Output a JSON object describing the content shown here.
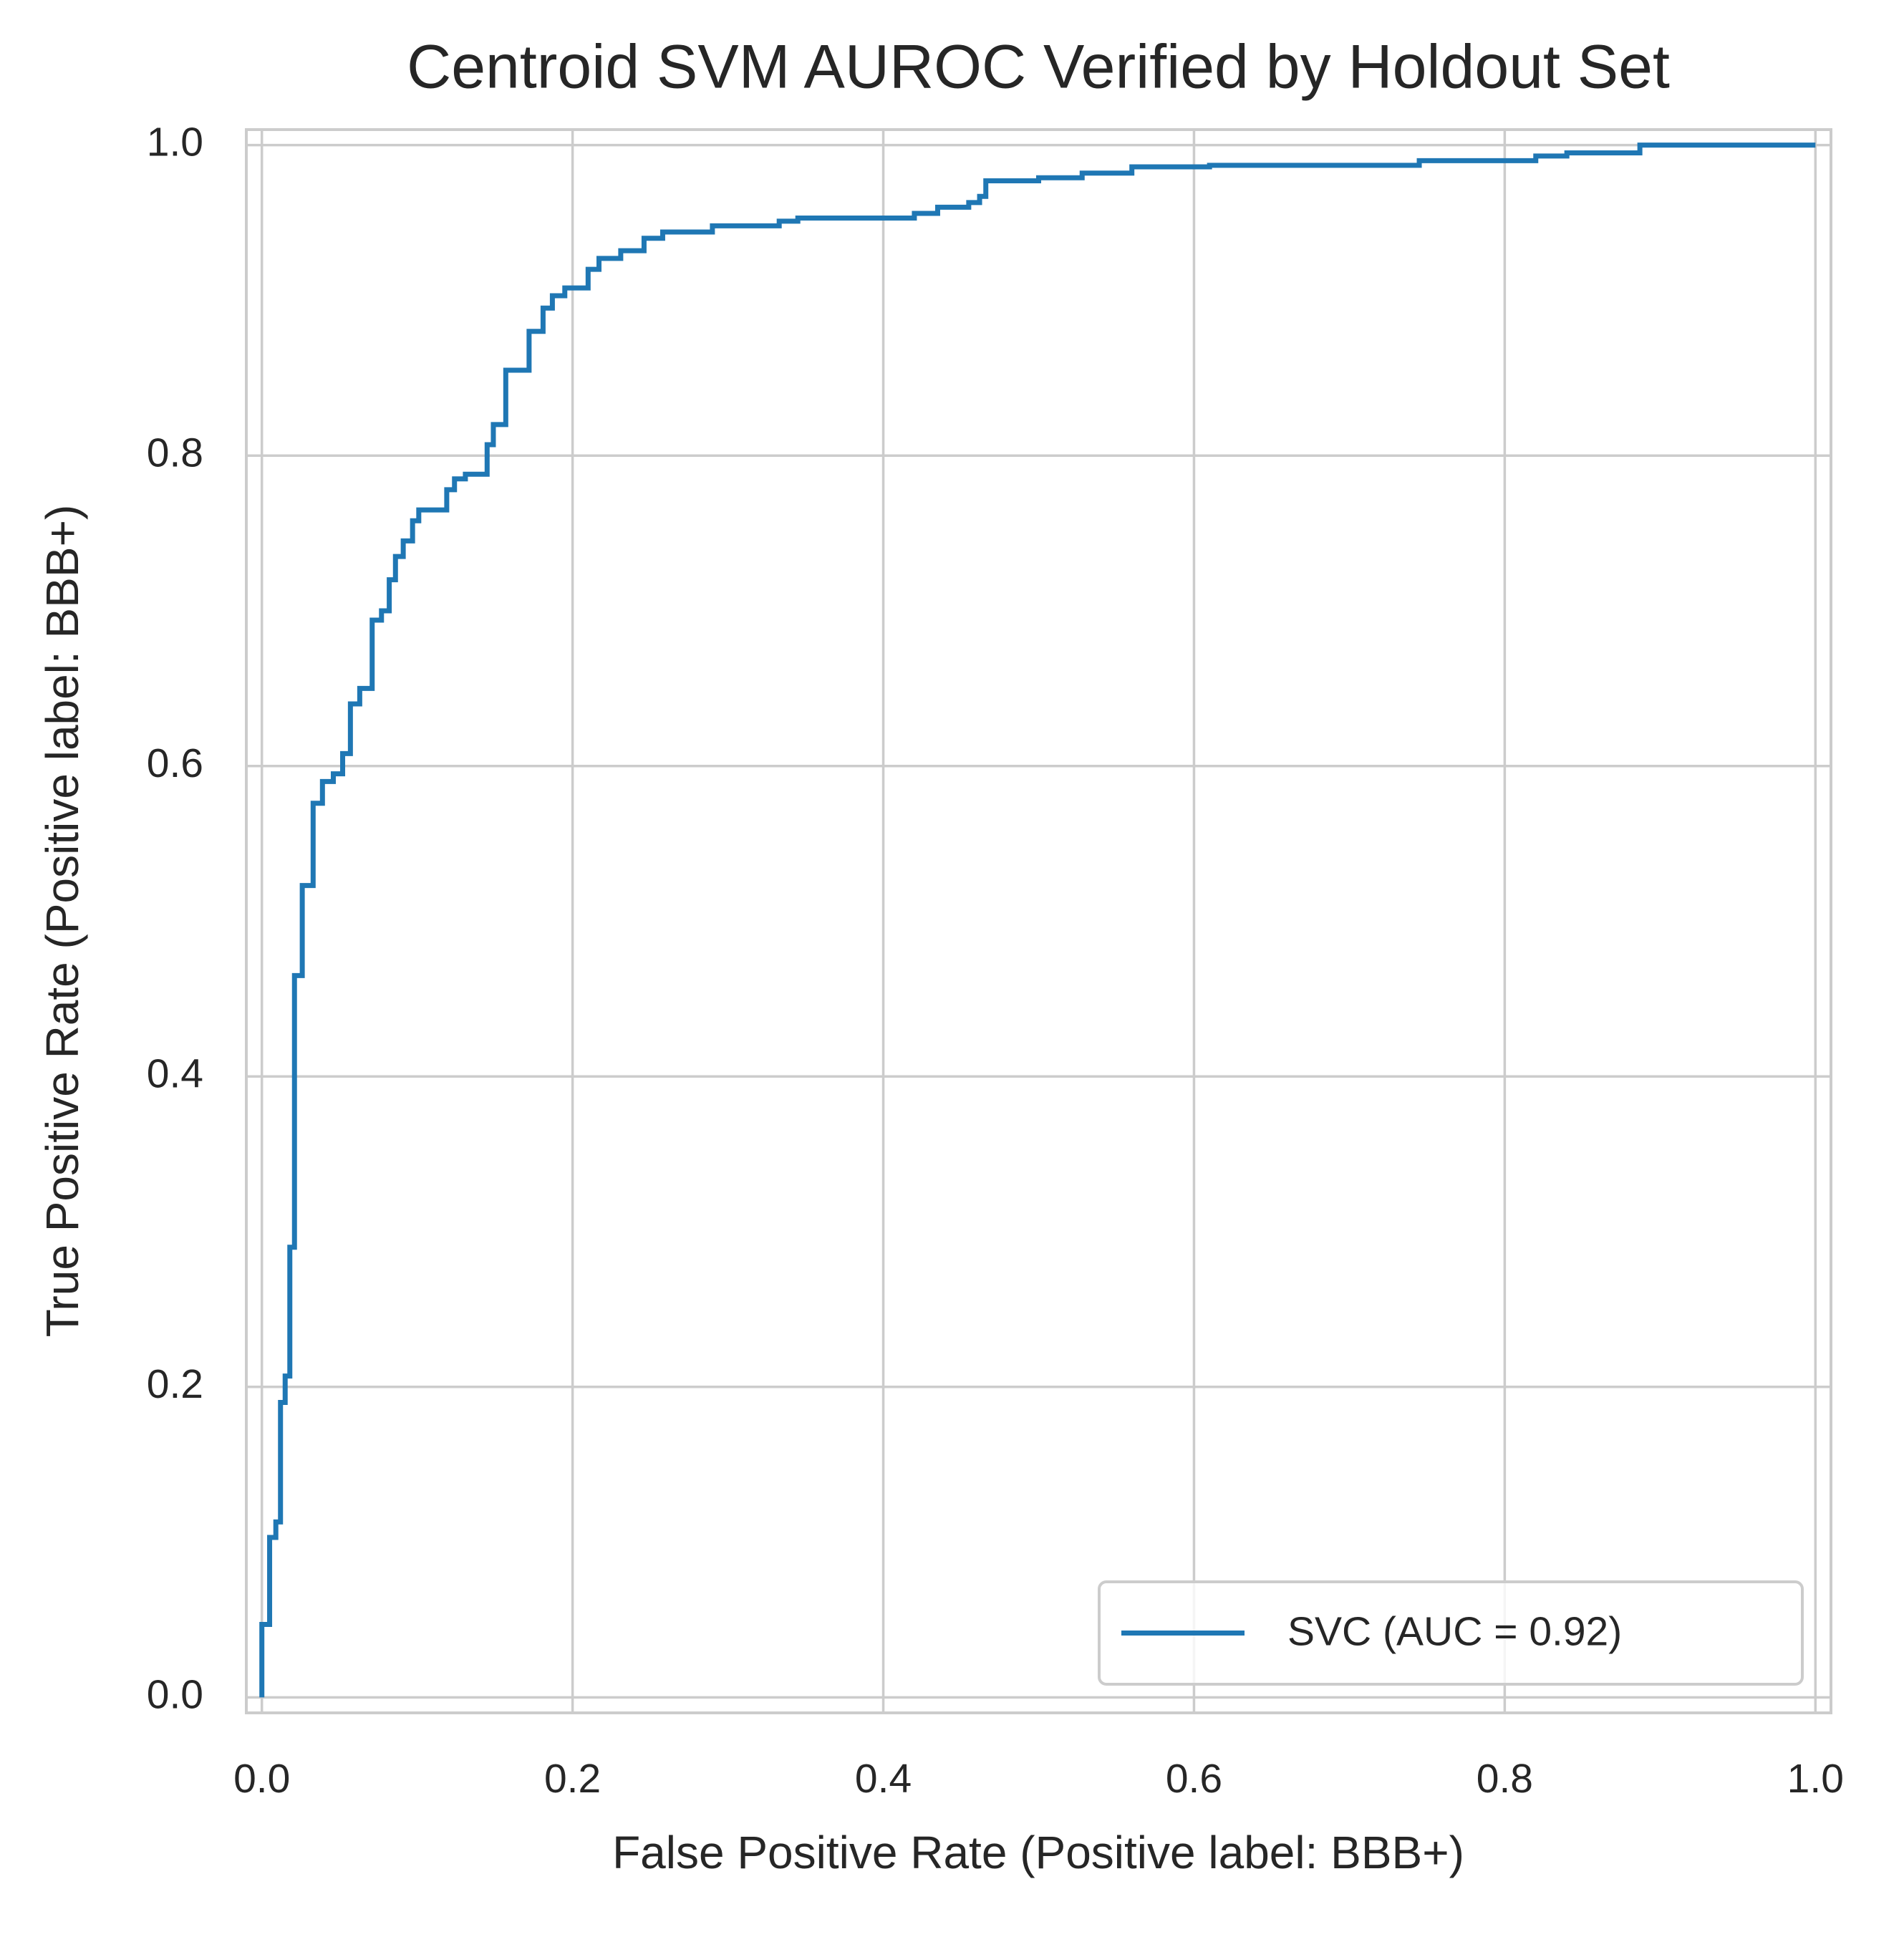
{
  "chart_data": {
    "type": "line",
    "title": "Centroid SVM AUROC Verified by Holdout Set",
    "xlabel": "False Positive Rate (Positive label: BBB+)",
    "ylabel": "True Positive Rate (Positive label: BBB+)",
    "xlim": [
      -0.01,
      1.01
    ],
    "ylim": [
      -0.01,
      1.01
    ],
    "xticks": [
      {
        "value": 0,
        "label": "0.0"
      },
      0.2,
      0.4,
      0.6,
      0.8,
      {
        "value": 1,
        "label": "1.0"
      }
    ],
    "yticks": [
      {
        "value": 0,
        "label": "0.0"
      },
      0.2,
      0.4,
      0.6,
      0.8,
      {
        "value": 1,
        "label": "1.0"
      }
    ],
    "grid": true,
    "legend": "lower right",
    "series": [
      {
        "name": "SVC (AUC = 0.92)",
        "color": "#1f77b4",
        "x": [
          0,
          0,
          0.005,
          0.005,
          0.009,
          0.009,
          0.012,
          0.012,
          0.015,
          0.015,
          0.018,
          0.018,
          0.021,
          0.021,
          0.026,
          0.026,
          0.033,
          0.033,
          0.039,
          0.039,
          0.046,
          0.046,
          0.052,
          0.052,
          0.057,
          0.057,
          0.063,
          0.063,
          0.071,
          0.071,
          0.077,
          0.077,
          0.082,
          0.082,
          0.086,
          0.086,
          0.091,
          0.091,
          0.097,
          0.097,
          0.101,
          0.101,
          0.119,
          0.119,
          0.124,
          0.124,
          0.131,
          0.131,
          0.145,
          0.145,
          0.149,
          0.149,
          0.157,
          0.157,
          0.172,
          0.172,
          0.181,
          0.181,
          0.187,
          0.187,
          0.195,
          0.195,
          0.21,
          0.21,
          0.217,
          0.217,
          0.231,
          0.231,
          0.246,
          0.246,
          0.258,
          0.258,
          0.29,
          0.29,
          0.333,
          0.333,
          0.345,
          0.345,
          0.42,
          0.42,
          0.435,
          0.435,
          0.455,
          0.455,
          0.462,
          0.462,
          0.466,
          0.466,
          0.5,
          0.5,
          0.528,
          0.528,
          0.56,
          0.56,
          0.61,
          0.61,
          0.745,
          0.745,
          0.82,
          0.82,
          0.84,
          0.84,
          0.887,
          0.887,
          1
        ],
        "values": [
          0,
          0.047,
          0.047,
          0.103,
          0.103,
          0.113,
          0.113,
          0.19,
          0.19,
          0.207,
          0.207,
          0.29,
          0.29,
          0.465,
          0.465,
          0.523,
          0.523,
          0.576,
          0.576,
          0.59,
          0.59,
          0.595,
          0.595,
          0.608,
          0.608,
          0.64,
          0.64,
          0.65,
          0.65,
          0.694,
          0.694,
          0.7,
          0.7,
          0.72,
          0.72,
          0.735,
          0.735,
          0.745,
          0.745,
          0.758,
          0.758,
          0.765,
          0.765,
          0.778,
          0.778,
          0.785,
          0.785,
          0.788,
          0.788,
          0.807,
          0.807,
          0.82,
          0.82,
          0.855,
          0.855,
          0.88,
          0.88,
          0.895,
          0.895,
          0.903,
          0.903,
          0.908,
          0.908,
          0.92,
          0.92,
          0.927,
          0.927,
          0.932,
          0.932,
          0.94,
          0.94,
          0.944,
          0.944,
          0.948,
          0.948,
          0.951,
          0.951,
          0.953,
          0.953,
          0.956,
          0.956,
          0.96,
          0.96,
          0.963,
          0.963,
          0.967,
          0.967,
          0.977,
          0.977,
          0.979,
          0.979,
          0.982,
          0.982,
          0.986,
          0.986,
          0.987,
          0.987,
          0.99,
          0.99,
          0.993,
          0.993,
          0.995,
          0.995,
          1,
          1
        ]
      }
    ]
  }
}
